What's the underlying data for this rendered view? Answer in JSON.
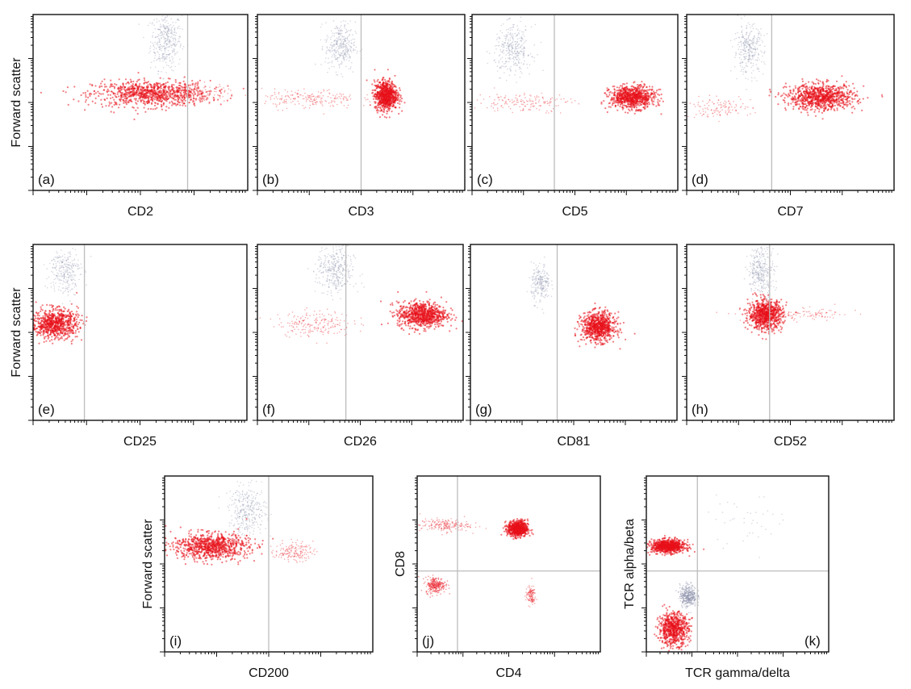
{
  "figure": {
    "type": "flow-cytometry-dot-plots",
    "colors": {
      "population_red": "#e8101a",
      "population_grey": "#8a8fa8",
      "gate_line": "#bdbdbd",
      "frame": "#111111"
    }
  },
  "chart_data": [
    {
      "type": "scatter",
      "panel": "(a)",
      "xlabel": "CD2",
      "ylabel": "Forward scatter",
      "xscale": "log",
      "yscale": "log",
      "gate_x": 0.72,
      "series": [
        {
          "color": "#e8101a",
          "clusters": [
            {
              "x": 0.55,
              "y": 0.55,
              "spread_x": 0.3,
              "spread_y": 0.08,
              "n": 900,
              "density": "high"
            },
            {
              "x": 0.72,
              "y": 0.55,
              "spread_x": 0.2,
              "spread_y": 0.05,
              "n": 200,
              "density": "low"
            }
          ]
        },
        {
          "color": "#8a8fa8",
          "clusters": [
            {
              "x": 0.62,
              "y": 0.85,
              "spread_x": 0.08,
              "spread_y": 0.18,
              "n": 350,
              "density": "low"
            }
          ]
        }
      ]
    },
    {
      "type": "scatter",
      "panel": "(b)",
      "xlabel": "CD3",
      "ylabel": "",
      "xscale": "log",
      "yscale": "log",
      "gate_x": 0.5,
      "series": [
        {
          "color": "#e8101a",
          "clusters": [
            {
              "x": 0.62,
              "y": 0.54,
              "spread_x": 0.06,
              "spread_y": 0.09,
              "n": 800,
              "density": "high"
            },
            {
              "x": 0.25,
              "y": 0.52,
              "spread_x": 0.25,
              "spread_y": 0.06,
              "n": 200,
              "density": "low"
            }
          ]
        },
        {
          "color": "#8a8fa8",
          "clusters": [
            {
              "x": 0.4,
              "y": 0.82,
              "spread_x": 0.08,
              "spread_y": 0.15,
              "n": 320,
              "density": "low"
            }
          ]
        }
      ]
    },
    {
      "type": "scatter",
      "panel": "(c)",
      "xlabel": "CD5",
      "ylabel": "",
      "xscale": "log",
      "yscale": "log",
      "gate_x": 0.4,
      "series": [
        {
          "color": "#e8101a",
          "clusters": [
            {
              "x": 0.78,
              "y": 0.53,
              "spread_x": 0.12,
              "spread_y": 0.07,
              "n": 800,
              "density": "high"
            },
            {
              "x": 0.25,
              "y": 0.5,
              "spread_x": 0.25,
              "spread_y": 0.06,
              "n": 160,
              "density": "low"
            }
          ]
        },
        {
          "color": "#8a8fa8",
          "clusters": [
            {
              "x": 0.2,
              "y": 0.8,
              "spread_x": 0.1,
              "spread_y": 0.15,
              "n": 320,
              "density": "low"
            }
          ]
        }
      ]
    },
    {
      "type": "scatter",
      "panel": "(d)",
      "xlabel": "CD7",
      "ylabel": "",
      "xscale": "log",
      "yscale": "log",
      "gate_x": 0.41,
      "series": [
        {
          "color": "#e8101a",
          "clusters": [
            {
              "x": 0.65,
              "y": 0.53,
              "spread_x": 0.18,
              "spread_y": 0.08,
              "n": 900,
              "density": "high"
            },
            {
              "x": 0.15,
              "y": 0.47,
              "spread_x": 0.18,
              "spread_y": 0.06,
              "n": 120,
              "density": "low"
            }
          ]
        },
        {
          "color": "#8a8fa8",
          "clusters": [
            {
              "x": 0.3,
              "y": 0.8,
              "spread_x": 0.08,
              "spread_y": 0.15,
              "n": 300,
              "density": "low"
            }
          ]
        }
      ]
    },
    {
      "type": "scatter",
      "panel": "(e)",
      "xlabel": "CD25",
      "ylabel": "Forward scatter",
      "xscale": "log",
      "yscale": "log",
      "gate_x": 0.24,
      "series": [
        {
          "color": "#e8101a",
          "clusters": [
            {
              "x": 0.1,
              "y": 0.55,
              "spread_x": 0.12,
              "spread_y": 0.09,
              "n": 800,
              "density": "high"
            }
          ]
        },
        {
          "color": "#8a8fa8",
          "clusters": [
            {
              "x": 0.15,
              "y": 0.85,
              "spread_x": 0.08,
              "spread_y": 0.15,
              "n": 260,
              "density": "low"
            }
          ]
        }
      ]
    },
    {
      "type": "scatter",
      "panel": "(f)",
      "xlabel": "CD26",
      "ylabel": "",
      "xscale": "log",
      "yscale": "log",
      "gate_x": 0.43,
      "series": [
        {
          "color": "#e8101a",
          "clusters": [
            {
              "x": 0.8,
              "y": 0.6,
              "spread_x": 0.13,
              "spread_y": 0.08,
              "n": 850,
              "density": "high"
            },
            {
              "x": 0.28,
              "y": 0.55,
              "spread_x": 0.2,
              "spread_y": 0.08,
              "n": 200,
              "density": "low"
            }
          ]
        },
        {
          "color": "#8a8fa8",
          "clusters": [
            {
              "x": 0.38,
              "y": 0.85,
              "spread_x": 0.1,
              "spread_y": 0.15,
              "n": 350,
              "density": "low"
            }
          ]
        }
      ]
    },
    {
      "type": "scatter",
      "panel": "(g)",
      "xlabel": "CD81",
      "ylabel": "",
      "xscale": "log",
      "yscale": "log",
      "gate_x": 0.42,
      "series": [
        {
          "color": "#e8101a",
          "clusters": [
            {
              "x": 0.62,
              "y": 0.53,
              "spread_x": 0.09,
              "spread_y": 0.09,
              "n": 800,
              "density": "high"
            }
          ]
        },
        {
          "color": "#8a8fa8",
          "clusters": [
            {
              "x": 0.34,
              "y": 0.78,
              "spread_x": 0.05,
              "spread_y": 0.12,
              "n": 220,
              "density": "low"
            }
          ]
        }
      ]
    },
    {
      "type": "scatter",
      "panel": "(h)",
      "xlabel": "CD52",
      "ylabel": "",
      "xscale": "log",
      "yscale": "log",
      "gate_x": 0.4,
      "series": [
        {
          "color": "#e8101a",
          "clusters": [
            {
              "x": 0.38,
              "y": 0.6,
              "spread_x": 0.09,
              "spread_y": 0.09,
              "n": 850,
              "density": "high"
            },
            {
              "x": 0.55,
              "y": 0.6,
              "spread_x": 0.3,
              "spread_y": 0.04,
              "n": 120,
              "density": "low"
            }
          ]
        },
        {
          "color": "#8a8fa8",
          "clusters": [
            {
              "x": 0.36,
              "y": 0.85,
              "spread_x": 0.07,
              "spread_y": 0.15,
              "n": 320,
              "density": "low"
            }
          ]
        }
      ]
    },
    {
      "type": "scatter",
      "panel": "(i)",
      "xlabel": "CD200",
      "ylabel": "Forward scatter",
      "xscale": "log",
      "yscale": "log",
      "gate_x": 0.5,
      "series": [
        {
          "color": "#e8101a",
          "clusters": [
            {
              "x": 0.22,
              "y": 0.6,
              "spread_x": 0.2,
              "spread_y": 0.08,
              "n": 900,
              "density": "high"
            },
            {
              "x": 0.62,
              "y": 0.57,
              "spread_x": 0.1,
              "spread_y": 0.06,
              "n": 160,
              "density": "low"
            }
          ]
        },
        {
          "color": "#8a8fa8",
          "clusters": [
            {
              "x": 0.4,
              "y": 0.8,
              "spread_x": 0.1,
              "spread_y": 0.15,
              "n": 320,
              "density": "low"
            }
          ]
        }
      ]
    },
    {
      "type": "scatter",
      "panel": "(j)",
      "xlabel": "CD4",
      "ylabel": "CD8",
      "xscale": "log",
      "yscale": "log",
      "gate_x": 0.22,
      "gate_y": 0.46,
      "series": [
        {
          "color": "#e8101a",
          "clusters": [
            {
              "x": 0.55,
              "y": 0.7,
              "spread_x": 0.06,
              "spread_y": 0.05,
              "n": 700,
              "density": "high"
            },
            {
              "x": 0.1,
              "y": 0.38,
              "spread_x": 0.06,
              "spread_y": 0.05,
              "n": 250,
              "density": "medium"
            },
            {
              "x": 0.15,
              "y": 0.72,
              "spread_x": 0.15,
              "spread_y": 0.04,
              "n": 200,
              "density": "low"
            },
            {
              "x": 0.62,
              "y": 0.32,
              "spread_x": 0.03,
              "spread_y": 0.06,
              "n": 120,
              "density": "low"
            }
          ]
        }
      ]
    },
    {
      "type": "scatter",
      "panel": "(k)",
      "xlabel": "TCR gamma/delta",
      "ylabel": "TCR alpha/beta",
      "xscale": "log",
      "yscale": "log",
      "gate_x": 0.28,
      "gate_y": 0.46,
      "series": [
        {
          "color": "#e8101a",
          "clusters": [
            {
              "x": 0.12,
              "y": 0.6,
              "spread_x": 0.1,
              "spread_y": 0.04,
              "n": 850,
              "density": "high"
            },
            {
              "x": 0.15,
              "y": 0.13,
              "spread_x": 0.09,
              "spread_y": 0.1,
              "n": 700,
              "density": "high"
            }
          ]
        },
        {
          "color": "#8a8fa8",
          "clusters": [
            {
              "x": 0.23,
              "y": 0.32,
              "spread_x": 0.05,
              "spread_y": 0.07,
              "n": 350,
              "density": "medium"
            },
            {
              "x": 0.55,
              "y": 0.75,
              "spread_x": 0.25,
              "spread_y": 0.15,
              "n": 40,
              "density": "low"
            }
          ]
        }
      ]
    }
  ]
}
